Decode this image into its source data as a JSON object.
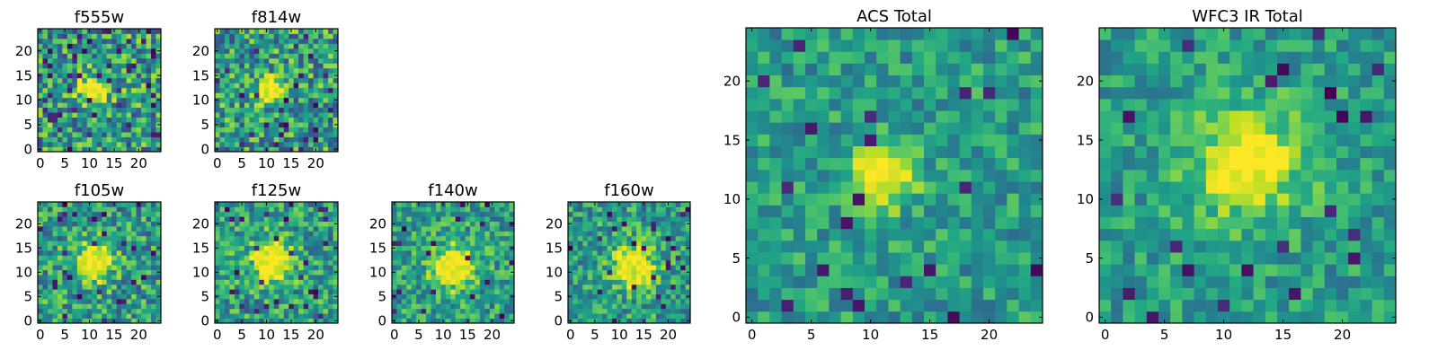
{
  "chart_data": [
    {
      "type": "heatmap",
      "title": "f555w",
      "size": 25,
      "colormap": "viridis",
      "xticks": [
        0,
        5,
        10,
        15,
        20
      ],
      "yticks": [
        0,
        5,
        10,
        15,
        20
      ],
      "xlim": [
        0,
        25
      ],
      "ylim": [
        0,
        25
      ],
      "source_center": [
        11,
        12
      ],
      "source_radius": 2.2,
      "noise_level": 0.34,
      "dark_pixel_fraction": 0.06,
      "seed": 101
    },
    {
      "type": "heatmap",
      "title": "f814w",
      "size": 25,
      "colormap": "viridis",
      "xticks": [
        0,
        5,
        10,
        15,
        20
      ],
      "yticks": [
        0,
        5,
        10,
        15,
        20
      ],
      "xlim": [
        0,
        25
      ],
      "ylim": [
        0,
        25
      ],
      "source_center": [
        11,
        12
      ],
      "source_radius": 2.0,
      "noise_level": 0.33,
      "dark_pixel_fraction": 0.06,
      "seed": 202
    },
    {
      "type": "heatmap",
      "title": "f105w",
      "size": 25,
      "colormap": "viridis",
      "xticks": [
        0,
        5,
        10,
        15,
        20
      ],
      "yticks": [
        0,
        5,
        10,
        15,
        20
      ],
      "xlim": [
        0,
        25
      ],
      "ylim": [
        0,
        25
      ],
      "source_center": [
        11,
        12
      ],
      "source_radius": 3.0,
      "noise_level": 0.28,
      "dark_pixel_fraction": 0.04,
      "seed": 303
    },
    {
      "type": "heatmap",
      "title": "f125w",
      "size": 25,
      "colormap": "viridis",
      "xticks": [
        0,
        5,
        10,
        15,
        20
      ],
      "yticks": [
        0,
        5,
        10,
        15,
        20
      ],
      "xlim": [
        0,
        25
      ],
      "ylim": [
        0,
        25
      ],
      "source_center": [
        11,
        12
      ],
      "source_radius": 3.2,
      "noise_level": 0.27,
      "dark_pixel_fraction": 0.04,
      "seed": 404
    },
    {
      "type": "heatmap",
      "title": "f140w",
      "size": 25,
      "colormap": "viridis",
      "xticks": [
        0,
        5,
        10,
        15,
        20
      ],
      "yticks": [
        0,
        5,
        10,
        15,
        20
      ],
      "xlim": [
        0,
        25
      ],
      "ylim": [
        0,
        25
      ],
      "source_center": [
        12,
        11
      ],
      "source_radius": 3.4,
      "noise_level": 0.25,
      "dark_pixel_fraction": 0.04,
      "seed": 505
    },
    {
      "type": "heatmap",
      "title": "f160w",
      "size": 25,
      "colormap": "viridis",
      "xticks": [
        0,
        5,
        10,
        15,
        20
      ],
      "yticks": [
        0,
        5,
        10,
        15,
        20
      ],
      "xlim": [
        0,
        25
      ],
      "ylim": [
        0,
        25
      ],
      "source_center": [
        13,
        11
      ],
      "source_radius": 3.5,
      "noise_level": 0.25,
      "dark_pixel_fraction": 0.04,
      "seed": 606
    },
    {
      "type": "heatmap",
      "title": "ACS Total",
      "size": 25,
      "colormap": "viridis",
      "xticks": [
        0,
        5,
        10,
        15,
        20
      ],
      "yticks": [
        0,
        5,
        10,
        15,
        20
      ],
      "xlim": [
        0,
        25
      ],
      "ylim": [
        0,
        25
      ],
      "source_center": [
        11,
        12
      ],
      "source_radius": 2.1,
      "noise_level": 0.2,
      "dark_pixel_fraction": 0.04,
      "seed": 707
    },
    {
      "type": "heatmap",
      "title": "WFC3 IR Total",
      "size": 25,
      "colormap": "viridis",
      "xticks": [
        0,
        5,
        10,
        15,
        20
      ],
      "yticks": [
        0,
        5,
        10,
        15,
        20
      ],
      "xlim": [
        0,
        25
      ],
      "ylim": [
        0,
        25
      ],
      "source_center": [
        12,
        13
      ],
      "source_radius": 3.5,
      "noise_level": 0.18,
      "dark_pixel_fraction": 0.035,
      "seed": 808
    }
  ]
}
